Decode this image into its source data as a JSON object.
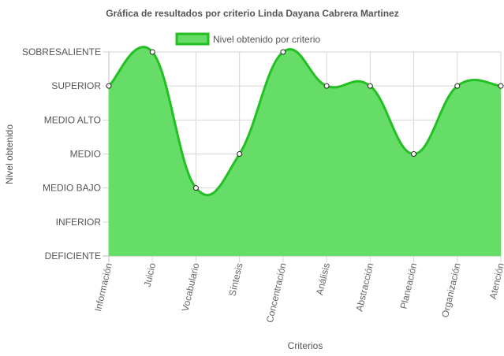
{
  "chart_data": {
    "type": "area",
    "title": "Gráfica de resultados por criterio Linda Dayana Cabrera Martinez",
    "xlabel": "Criterios",
    "ylabel": "Nivel obtenido",
    "levels": [
      "DEFICIENTE",
      "INFERIOR",
      "MEDIO BAJO",
      "MEDIO",
      "MEDIO ALTO",
      "SUPERIOR",
      "SOBRESALIENTE"
    ],
    "categories": [
      "Información",
      "Juicio",
      "Vocabulario",
      "Síntesis",
      "Concentración",
      "Análisis",
      "Abstracción",
      "Planeación",
      "Organización",
      "Atención"
    ],
    "series": [
      {
        "name": "Nivel obtenido por criterio",
        "values": [
          "SUPERIOR",
          "SOBRESALIENTE",
          "MEDIO BAJO",
          "MEDIO",
          "SOBRESALIENTE",
          "SUPERIOR",
          "SUPERIOR",
          "MEDIO",
          "SUPERIOR",
          "SUPERIOR"
        ],
        "line_color": "#22c022",
        "fill_color": "#66dd66"
      }
    ],
    "grid": true,
    "legend": "top"
  }
}
